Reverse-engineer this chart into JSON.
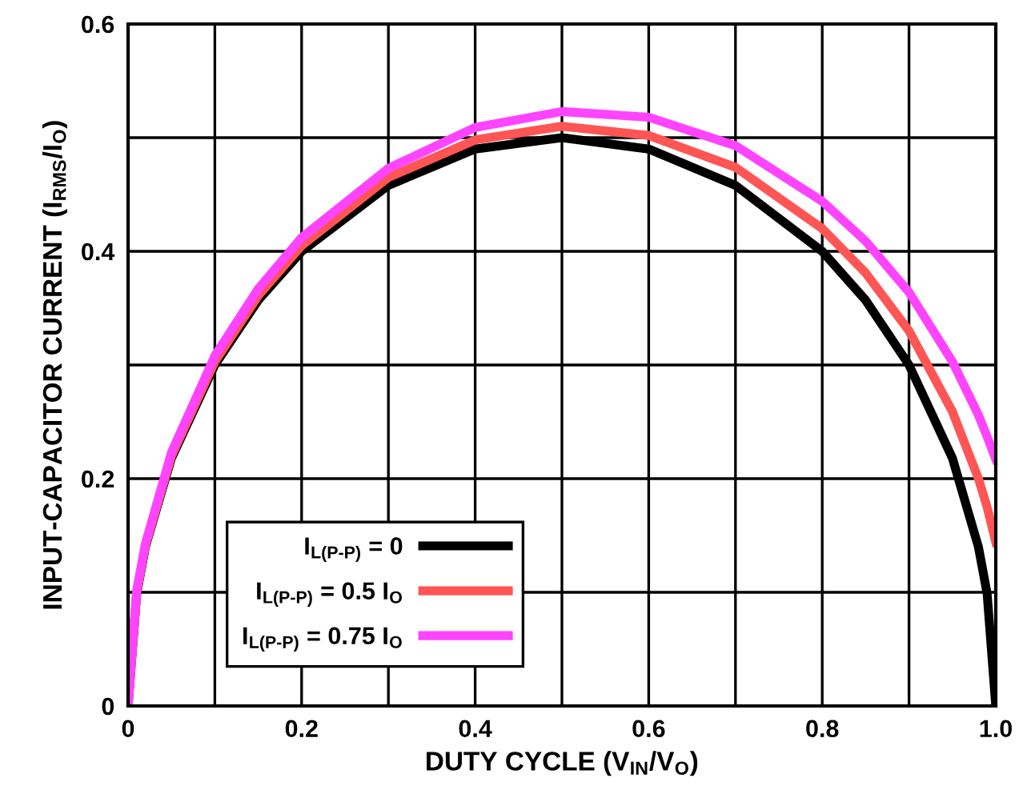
{
  "chart_data": {
    "type": "line",
    "xlabel": "DUTY CYCLE (V$_{IN}$/V$_{O}$)",
    "ylabel": "INPUT-CAPACITOR CURRENT (I$_{RMS}$/I$_{O}$)",
    "x": [
      0,
      0.01,
      0.02,
      0.05,
      0.1,
      0.15,
      0.2,
      0.3,
      0.4,
      0.5,
      0.6,
      0.7,
      0.8,
      0.85,
      0.9,
      0.95,
      0.98,
      0.99,
      1.0
    ],
    "series": [
      {
        "name": "I$_{L(P-P)}$ = 0",
        "color": "#000000",
        "values": [
          0,
          0.099,
          0.14,
          0.218,
          0.3,
          0.357,
          0.4,
          0.458,
          0.49,
          0.5,
          0.49,
          0.458,
          0.4,
          0.357,
          0.3,
          0.218,
          0.14,
          0.099,
          0
        ]
      },
      {
        "name": "I$_{L(P-P)}$ = 0.5 I$_{O}$",
        "color": "#ff5555",
        "values": [
          0,
          0.1,
          0.141,
          0.22,
          0.303,
          0.361,
          0.405,
          0.465,
          0.498,
          0.51,
          0.502,
          0.474,
          0.42,
          0.381,
          0.33,
          0.259,
          0.2,
          0.175,
          0.144
        ]
      },
      {
        "name": "I$_{L(P-P)}$ = 0.75 I$_{O}$",
        "color": "#ff44ff",
        "values": [
          0,
          0.102,
          0.143,
          0.223,
          0.308,
          0.367,
          0.412,
          0.473,
          0.509,
          0.523,
          0.518,
          0.493,
          0.444,
          0.409,
          0.364,
          0.303,
          0.256,
          0.237,
          0.217
        ]
      }
    ],
    "xlim": [
      0,
      1.0
    ],
    "ylim": [
      0,
      0.6
    ],
    "xticks": [
      0,
      {
        "value": 0.1,
        "label": null
      },
      0.2,
      {
        "value": 0.3,
        "label": null
      },
      0.4,
      {
        "value": 0.5,
        "label": null
      },
      0.6,
      {
        "value": 0.7,
        "label": null
      },
      0.8,
      {
        "value": 0.9,
        "label": null
      },
      {
        "value": 1.0,
        "label": "1.0"
      }
    ],
    "yticks": [
      0,
      {
        "value": 0.1,
        "label": null
      },
      0.2,
      {
        "value": 0.3,
        "label": null
      },
      0.4,
      {
        "value": 0.5,
        "label": null
      },
      0.6
    ],
    "grid": true,
    "legend": "bottom left",
    "marker": "none",
    "line_style": "solid"
  }
}
